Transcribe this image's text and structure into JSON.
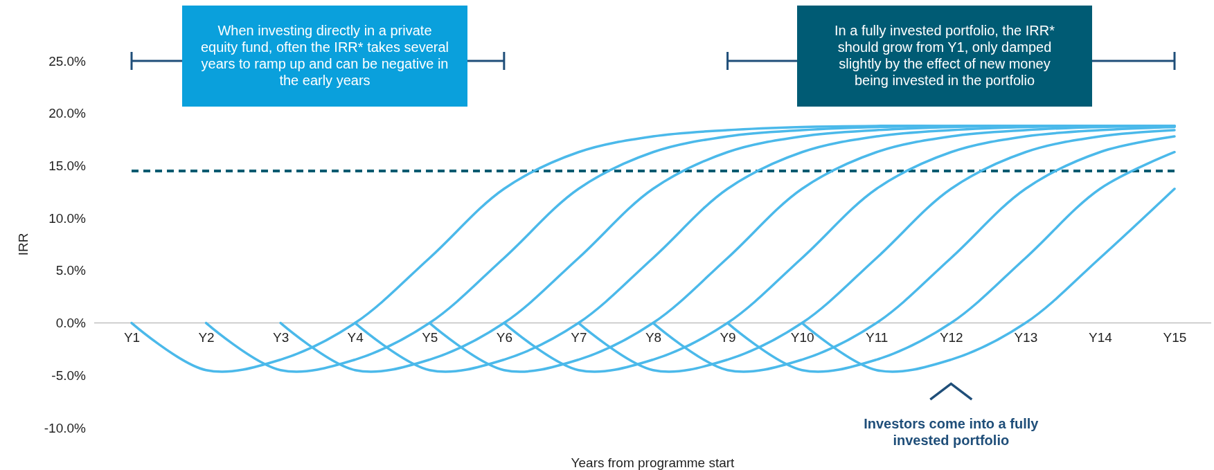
{
  "chart_data": {
    "type": "line",
    "xlabel": "Years from programme start",
    "ylabel": "IRR",
    "categories": [
      "Y1",
      "Y2",
      "Y3",
      "Y4",
      "Y5",
      "Y6",
      "Y7",
      "Y8",
      "Y9",
      "Y10",
      "Y11",
      "Y12",
      "Y13",
      "Y14",
      "Y15"
    ],
    "ylim": [
      -10,
      25
    ],
    "yticks": [
      {
        "value": -10,
        "label": "-10.0%"
      },
      {
        "value": -5,
        "label": "-5.0%"
      },
      {
        "value": 0,
        "label": "0.0%"
      },
      {
        "value": 5,
        "label": "5.0%"
      },
      {
        "value": 10,
        "label": "10.0%"
      },
      {
        "value": 15,
        "label": "15.0%"
      },
      {
        "value": 20,
        "label": "20.0%"
      },
      {
        "value": 25,
        "label": "25.0%"
      }
    ],
    "marker": "none",
    "line_style": "solid",
    "series": [
      {
        "color": "#4bb9ea",
        "values": [
          0,
          -4.5,
          -3.5,
          0,
          6.2,
          12.8,
          16.3,
          17.8,
          18.4,
          18.7,
          18.8,
          18.8,
          18.8,
          18.8,
          18.8
        ]
      },
      {
        "color": "#4bb9ea",
        "values": [
          null,
          0,
          -4.5,
          -3.5,
          0,
          6.2,
          12.8,
          16.3,
          17.8,
          18.4,
          18.7,
          18.8,
          18.8,
          18.8,
          18.8
        ]
      },
      {
        "color": "#4bb9ea",
        "values": [
          null,
          null,
          0,
          -4.5,
          -3.5,
          0,
          6.2,
          12.8,
          16.3,
          17.8,
          18.4,
          18.7,
          18.8,
          18.8,
          18.8
        ]
      },
      {
        "color": "#4bb9ea",
        "values": [
          null,
          null,
          null,
          0,
          -4.5,
          -3.5,
          0,
          6.2,
          12.8,
          16.3,
          17.8,
          18.4,
          18.7,
          18.8,
          18.8
        ]
      },
      {
        "color": "#4bb9ea",
        "values": [
          null,
          null,
          null,
          null,
          0,
          -4.5,
          -3.5,
          0,
          6.2,
          12.8,
          16.3,
          17.8,
          18.4,
          18.7,
          18.8
        ]
      },
      {
        "color": "#4bb9ea",
        "values": [
          null,
          null,
          null,
          null,
          null,
          0,
          -4.5,
          -3.5,
          0,
          6.2,
          12.8,
          16.3,
          17.8,
          18.4,
          18.7
        ]
      },
      {
        "color": "#4bb9ea",
        "values": [
          null,
          null,
          null,
          null,
          null,
          null,
          0,
          -4.5,
          -3.5,
          0,
          6.2,
          12.8,
          16.3,
          17.8,
          18.4
        ]
      },
      {
        "color": "#4bb9ea",
        "values": [
          null,
          null,
          null,
          null,
          null,
          null,
          null,
          0,
          -4.5,
          -3.5,
          0,
          6.2,
          12.8,
          16.3,
          17.8
        ]
      },
      {
        "color": "#4bb9ea",
        "values": [
          null,
          null,
          null,
          null,
          null,
          null,
          null,
          null,
          0,
          -4.5,
          -3.5,
          0,
          6.2,
          12.8,
          16.3
        ]
      },
      {
        "color": "#4bb9ea",
        "values": [
          null,
          null,
          null,
          null,
          null,
          null,
          null,
          null,
          null,
          0,
          -4.5,
          -3.5,
          0,
          6.2,
          12.8
        ]
      }
    ],
    "ref_lines": [
      {
        "axis": "y",
        "value": 14.5,
        "color": "#005a70",
        "line_style": "dashed"
      }
    ],
    "annotations": [
      "When investing directly in a private equity fund, often the IRR* takes several years to ramp up and can be negative in the early years",
      "In a fully invested portfolio, the IRR* should grow from Y1, only damped slightly by the effect of new money being invested in the portfolio",
      "Investors come into a fully invested portfolio"
    ]
  }
}
